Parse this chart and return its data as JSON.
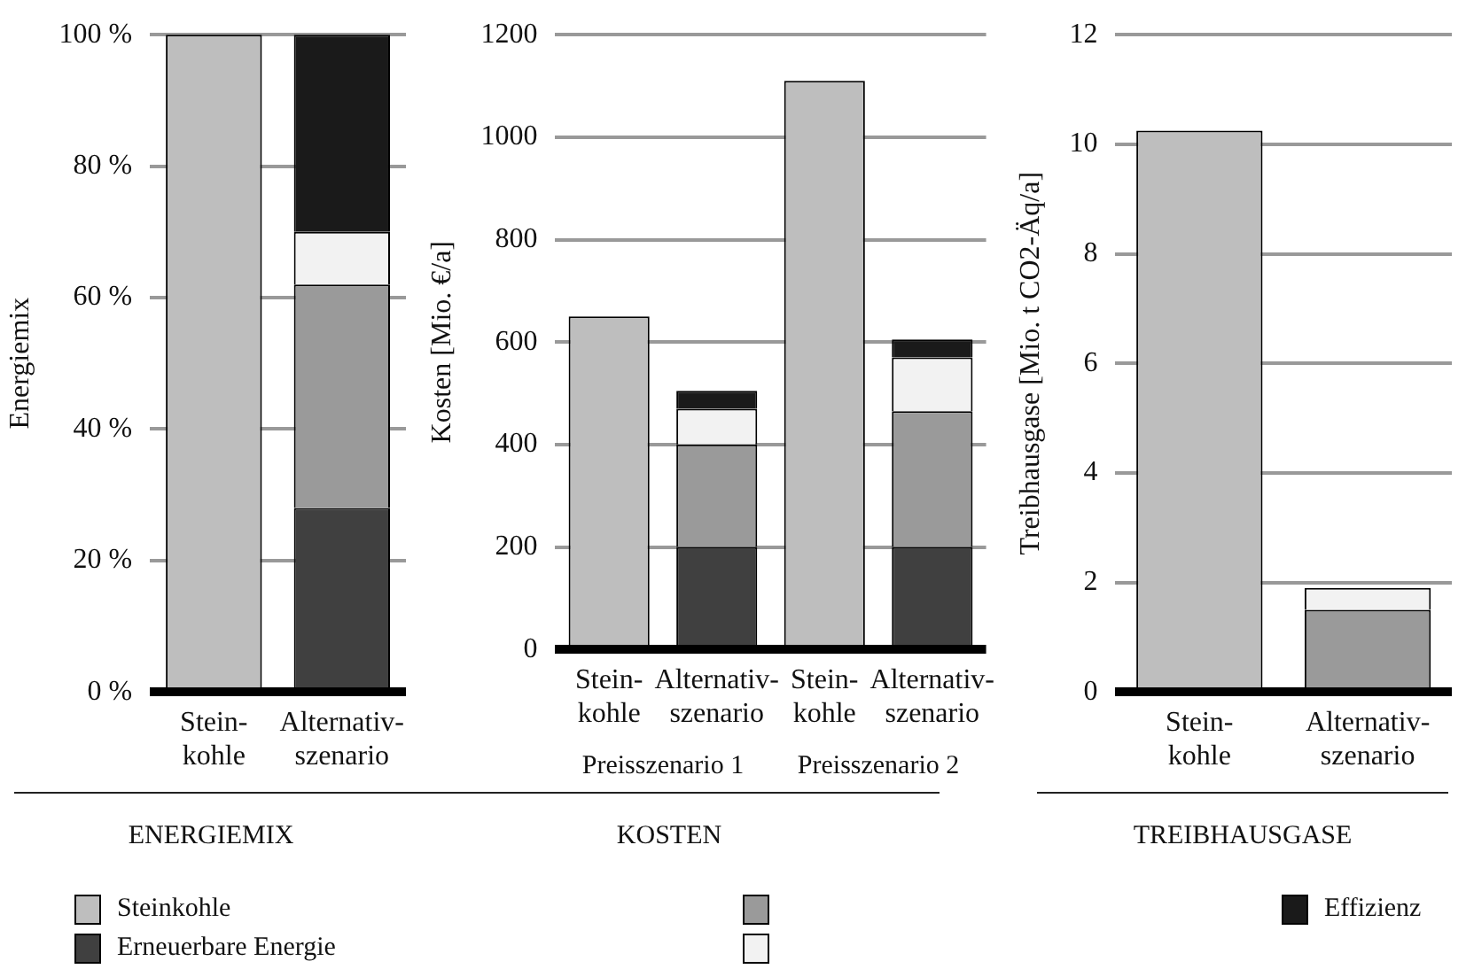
{
  "chart_data": [
    {
      "type": "bar",
      "title": "ENERGIEMIX",
      "ylabel": "Energiemix",
      "categories": [
        "Stein-\nkohle",
        "Alternativ-\nszenario"
      ],
      "stacked": true,
      "grid": "y",
      "legend": "bottom",
      "ylim": [
        0,
        100
      ],
      "yticks": [
        {
          "value": 0,
          "label": "0 %"
        },
        {
          "value": 20,
          "label": "20 %"
        },
        {
          "value": 40,
          "label": "40 %"
        },
        {
          "value": 60,
          "label": "60 %"
        },
        {
          "value": 80,
          "label": "80 %"
        },
        {
          "value": 100,
          "label": "100 %"
        }
      ],
      "series": [
        {
          "name": "Steinkohle",
          "color": "#bebebe",
          "values": [
            100,
            null
          ]
        },
        {
          "name": "Erneuerbare Energie",
          "color": "#404040",
          "values": [
            null,
            28
          ]
        },
        {
          "color": "#9a9a9a",
          "values": [
            null,
            34
          ]
        },
        {
          "color": "#f2f2f2",
          "values": [
            null,
            8
          ]
        },
        {
          "name": "Effizienz",
          "color": "#1a1a1a",
          "values": [
            null,
            30
          ]
        }
      ]
    },
    {
      "type": "bar",
      "title": "KOSTEN",
      "ylabel": "Kosten [Mio. €/a]",
      "categories": [
        "Stein-\nkohle",
        "Alternativ-\nszenario",
        "Stein-\nkohle",
        "Alternativ-\nszenario"
      ],
      "stacked": true,
      "grid": "y",
      "ylim": [
        0,
        1200
      ],
      "yticks": [
        0,
        200,
        400,
        600,
        800,
        1000,
        1200
      ],
      "annotations": [
        "Preisszenario 1",
        "Preisszenario 2"
      ],
      "series": [
        {
          "color": "#bebebe",
          "values": [
            650,
            null,
            1110,
            null
          ]
        },
        {
          "color": "#404040",
          "values": [
            null,
            200,
            null,
            200
          ]
        },
        {
          "color": "#9a9a9a",
          "values": [
            null,
            200,
            null,
            265
          ]
        },
        {
          "color": "#f2f2f2",
          "values": [
            null,
            70,
            null,
            105
          ]
        },
        {
          "color": "#1a1a1a",
          "values": [
            null,
            35,
            null,
            35
          ]
        }
      ]
    },
    {
      "type": "bar",
      "title": "TREIBHAUSGASE",
      "ylabel": "Treibhausgase [Mio. t CO2-Äq/a]",
      "categories": [
        "Stein-\nkohle",
        "Alternativ-\nszenario"
      ],
      "stacked": true,
      "grid": "y",
      "ylim": [
        0,
        12
      ],
      "yticks": [
        0,
        2,
        4,
        6,
        8,
        10,
        12
      ],
      "series": [
        {
          "color": "#bebebe",
          "values": [
            10.25,
            null
          ]
        },
        {
          "color": "#404040",
          "values": [
            null,
            null
          ]
        },
        {
          "color": "#9a9a9a",
          "values": [
            null,
            1.5
          ]
        },
        {
          "color": "#f2f2f2",
          "values": [
            null,
            0.4
          ]
        },
        {
          "color": "#1a1a1a",
          "values": [
            null,
            null
          ]
        }
      ]
    }
  ]
}
